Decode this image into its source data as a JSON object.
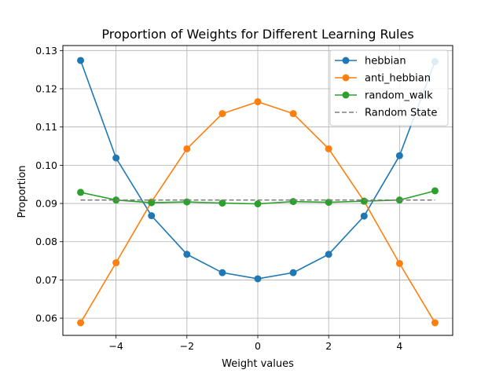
{
  "chart_data": {
    "type": "line",
    "title": "Proportion of Weights for Different Learning Rules",
    "xlabel": "Weight values",
    "ylabel": "Proportion",
    "xlim": [
      -5.5,
      5.5
    ],
    "ylim": [
      0.0555,
      0.1313
    ],
    "x_ticks": [
      -4,
      -2,
      0,
      2,
      4
    ],
    "x_tick_labels": [
      "−4",
      "−2",
      "0",
      "2",
      "4"
    ],
    "y_ticks": [
      0.06,
      0.07,
      0.08,
      0.09,
      0.1,
      0.11,
      0.12,
      0.13
    ],
    "y_tick_labels": [
      "0.06",
      "0.07",
      "0.08",
      "0.09",
      "0.10",
      "0.11",
      "0.12",
      "0.13"
    ],
    "grid": true,
    "legend_position": "top-right",
    "x": [
      -5,
      -4,
      -3,
      -2,
      -1,
      0,
      1,
      2,
      3,
      4,
      5
    ],
    "series": [
      {
        "name": "hebbian",
        "color": "#1f77b4",
        "marker": "circle",
        "linestyle": "solid",
        "values": [
          0.1274,
          0.1019,
          0.0868,
          0.0767,
          0.0719,
          0.0703,
          0.0719,
          0.0767,
          0.0867,
          0.1025,
          0.1271
        ]
      },
      {
        "name": "anti_hebbian",
        "color": "#ff7f0e",
        "marker": "circle",
        "linestyle": "solid",
        "values": [
          0.0588,
          0.0745,
          0.0904,
          0.1043,
          0.1135,
          0.1166,
          0.1135,
          0.1043,
          0.0906,
          0.0743,
          0.0588
        ]
      },
      {
        "name": "random_walk",
        "color": "#2ca02c",
        "marker": "circle",
        "linestyle": "solid",
        "values": [
          0.0929,
          0.0909,
          0.0902,
          0.0904,
          0.0901,
          0.0899,
          0.0905,
          0.0903,
          0.0906,
          0.0909,
          0.0933
        ]
      },
      {
        "name": "Random State",
        "color": "#7f7f7f",
        "marker": "none",
        "linestyle": "dashed",
        "values": [
          0.0909,
          0.0909
        ],
        "x": [
          -5,
          5
        ]
      }
    ]
  }
}
